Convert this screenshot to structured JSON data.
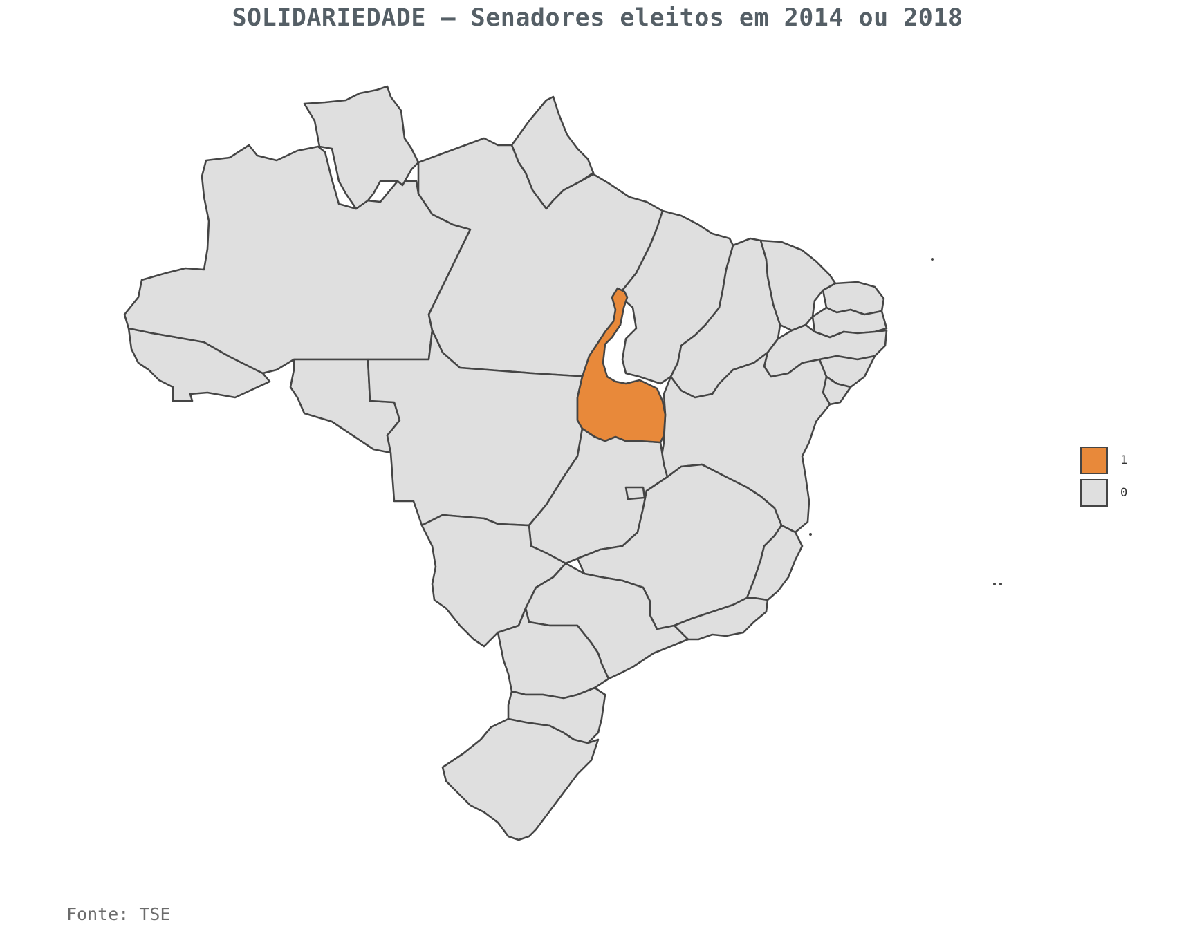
{
  "title": "SOLIDARIEDADE – Senadores eleitos em 2014 ou 2018",
  "source": "Fonte: TSE",
  "colors": {
    "elected": "#e8893a",
    "none": "#dfdfdf",
    "border": "#454545"
  },
  "legend": [
    {
      "label": "1",
      "color": "#e8893a"
    },
    {
      "label": "0",
      "color": "#dfdfdf"
    }
  ],
  "map_data": {
    "type": "choropleth",
    "region": "Brasil",
    "states": [
      {
        "uf": "AC",
        "value": 0
      },
      {
        "uf": "AM",
        "value": 0
      },
      {
        "uf": "RR",
        "value": 0
      },
      {
        "uf": "AP",
        "value": 0
      },
      {
        "uf": "PA",
        "value": 0
      },
      {
        "uf": "MA",
        "value": 0
      },
      {
        "uf": "PI",
        "value": 0
      },
      {
        "uf": "CE",
        "value": 0
      },
      {
        "uf": "RN",
        "value": 0
      },
      {
        "uf": "PB",
        "value": 0
      },
      {
        "uf": "PE",
        "value": 0
      },
      {
        "uf": "AL",
        "value": 0
      },
      {
        "uf": "SE",
        "value": 0
      },
      {
        "uf": "BA",
        "value": 0
      },
      {
        "uf": "TO",
        "value": 1
      },
      {
        "uf": "RO",
        "value": 0
      },
      {
        "uf": "MT",
        "value": 0
      },
      {
        "uf": "GO",
        "value": 0
      },
      {
        "uf": "DF",
        "value": 0
      },
      {
        "uf": "MS",
        "value": 0
      },
      {
        "uf": "MG",
        "value": 0
      },
      {
        "uf": "ES",
        "value": 0
      },
      {
        "uf": "RJ",
        "value": 0
      },
      {
        "uf": "SP",
        "value": 0
      },
      {
        "uf": "PR",
        "value": 0
      },
      {
        "uf": "SC",
        "value": 0
      },
      {
        "uf": "RS",
        "value": 0
      }
    ]
  }
}
